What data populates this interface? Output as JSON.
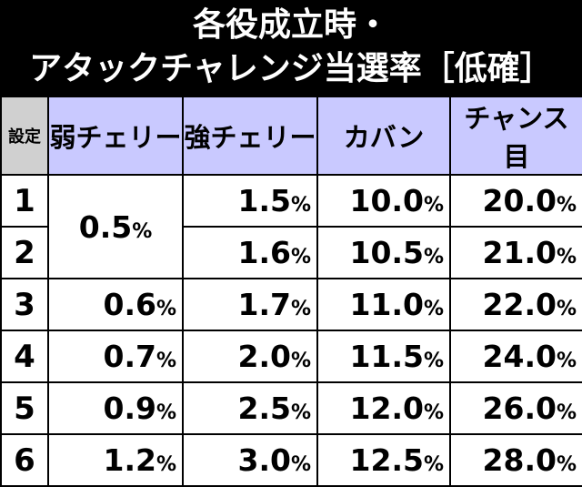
{
  "title": {
    "line1": "各役成立時・",
    "line2": "アタックチャレンジ当選率［低確］"
  },
  "table": {
    "headers": [
      "設定",
      "弱チェリー",
      "強チェリー",
      "カバン",
      "チャンス目"
    ],
    "rows": [
      {
        "setting": "1",
        "weak_cherry": "0.5",
        "strong_cherry": "1.5",
        "bag": "10.0",
        "chance": "20.0"
      },
      {
        "setting": "2",
        "strong_cherry": "1.6",
        "bag": "10.5",
        "chance": "21.0"
      },
      {
        "setting": "3",
        "weak_cherry": "0.6",
        "strong_cherry": "1.7",
        "bag": "11.0",
        "chance": "22.0"
      },
      {
        "setting": "4",
        "weak_cherry": "0.7",
        "strong_cherry": "2.0",
        "bag": "11.5",
        "chance": "24.0"
      },
      {
        "setting": "5",
        "weak_cherry": "0.9",
        "strong_cherry": "2.5",
        "bag": "12.0",
        "chance": "26.0"
      },
      {
        "setting": "6",
        "weak_cherry": "1.2",
        "strong_cherry": "3.0",
        "bag": "12.5",
        "chance": "28.0"
      }
    ],
    "unit": "%"
  },
  "colors": {
    "header_bg": "#c9c9ff",
    "corner_bg": "#d0d0d0",
    "title_bg": "#000000"
  }
}
